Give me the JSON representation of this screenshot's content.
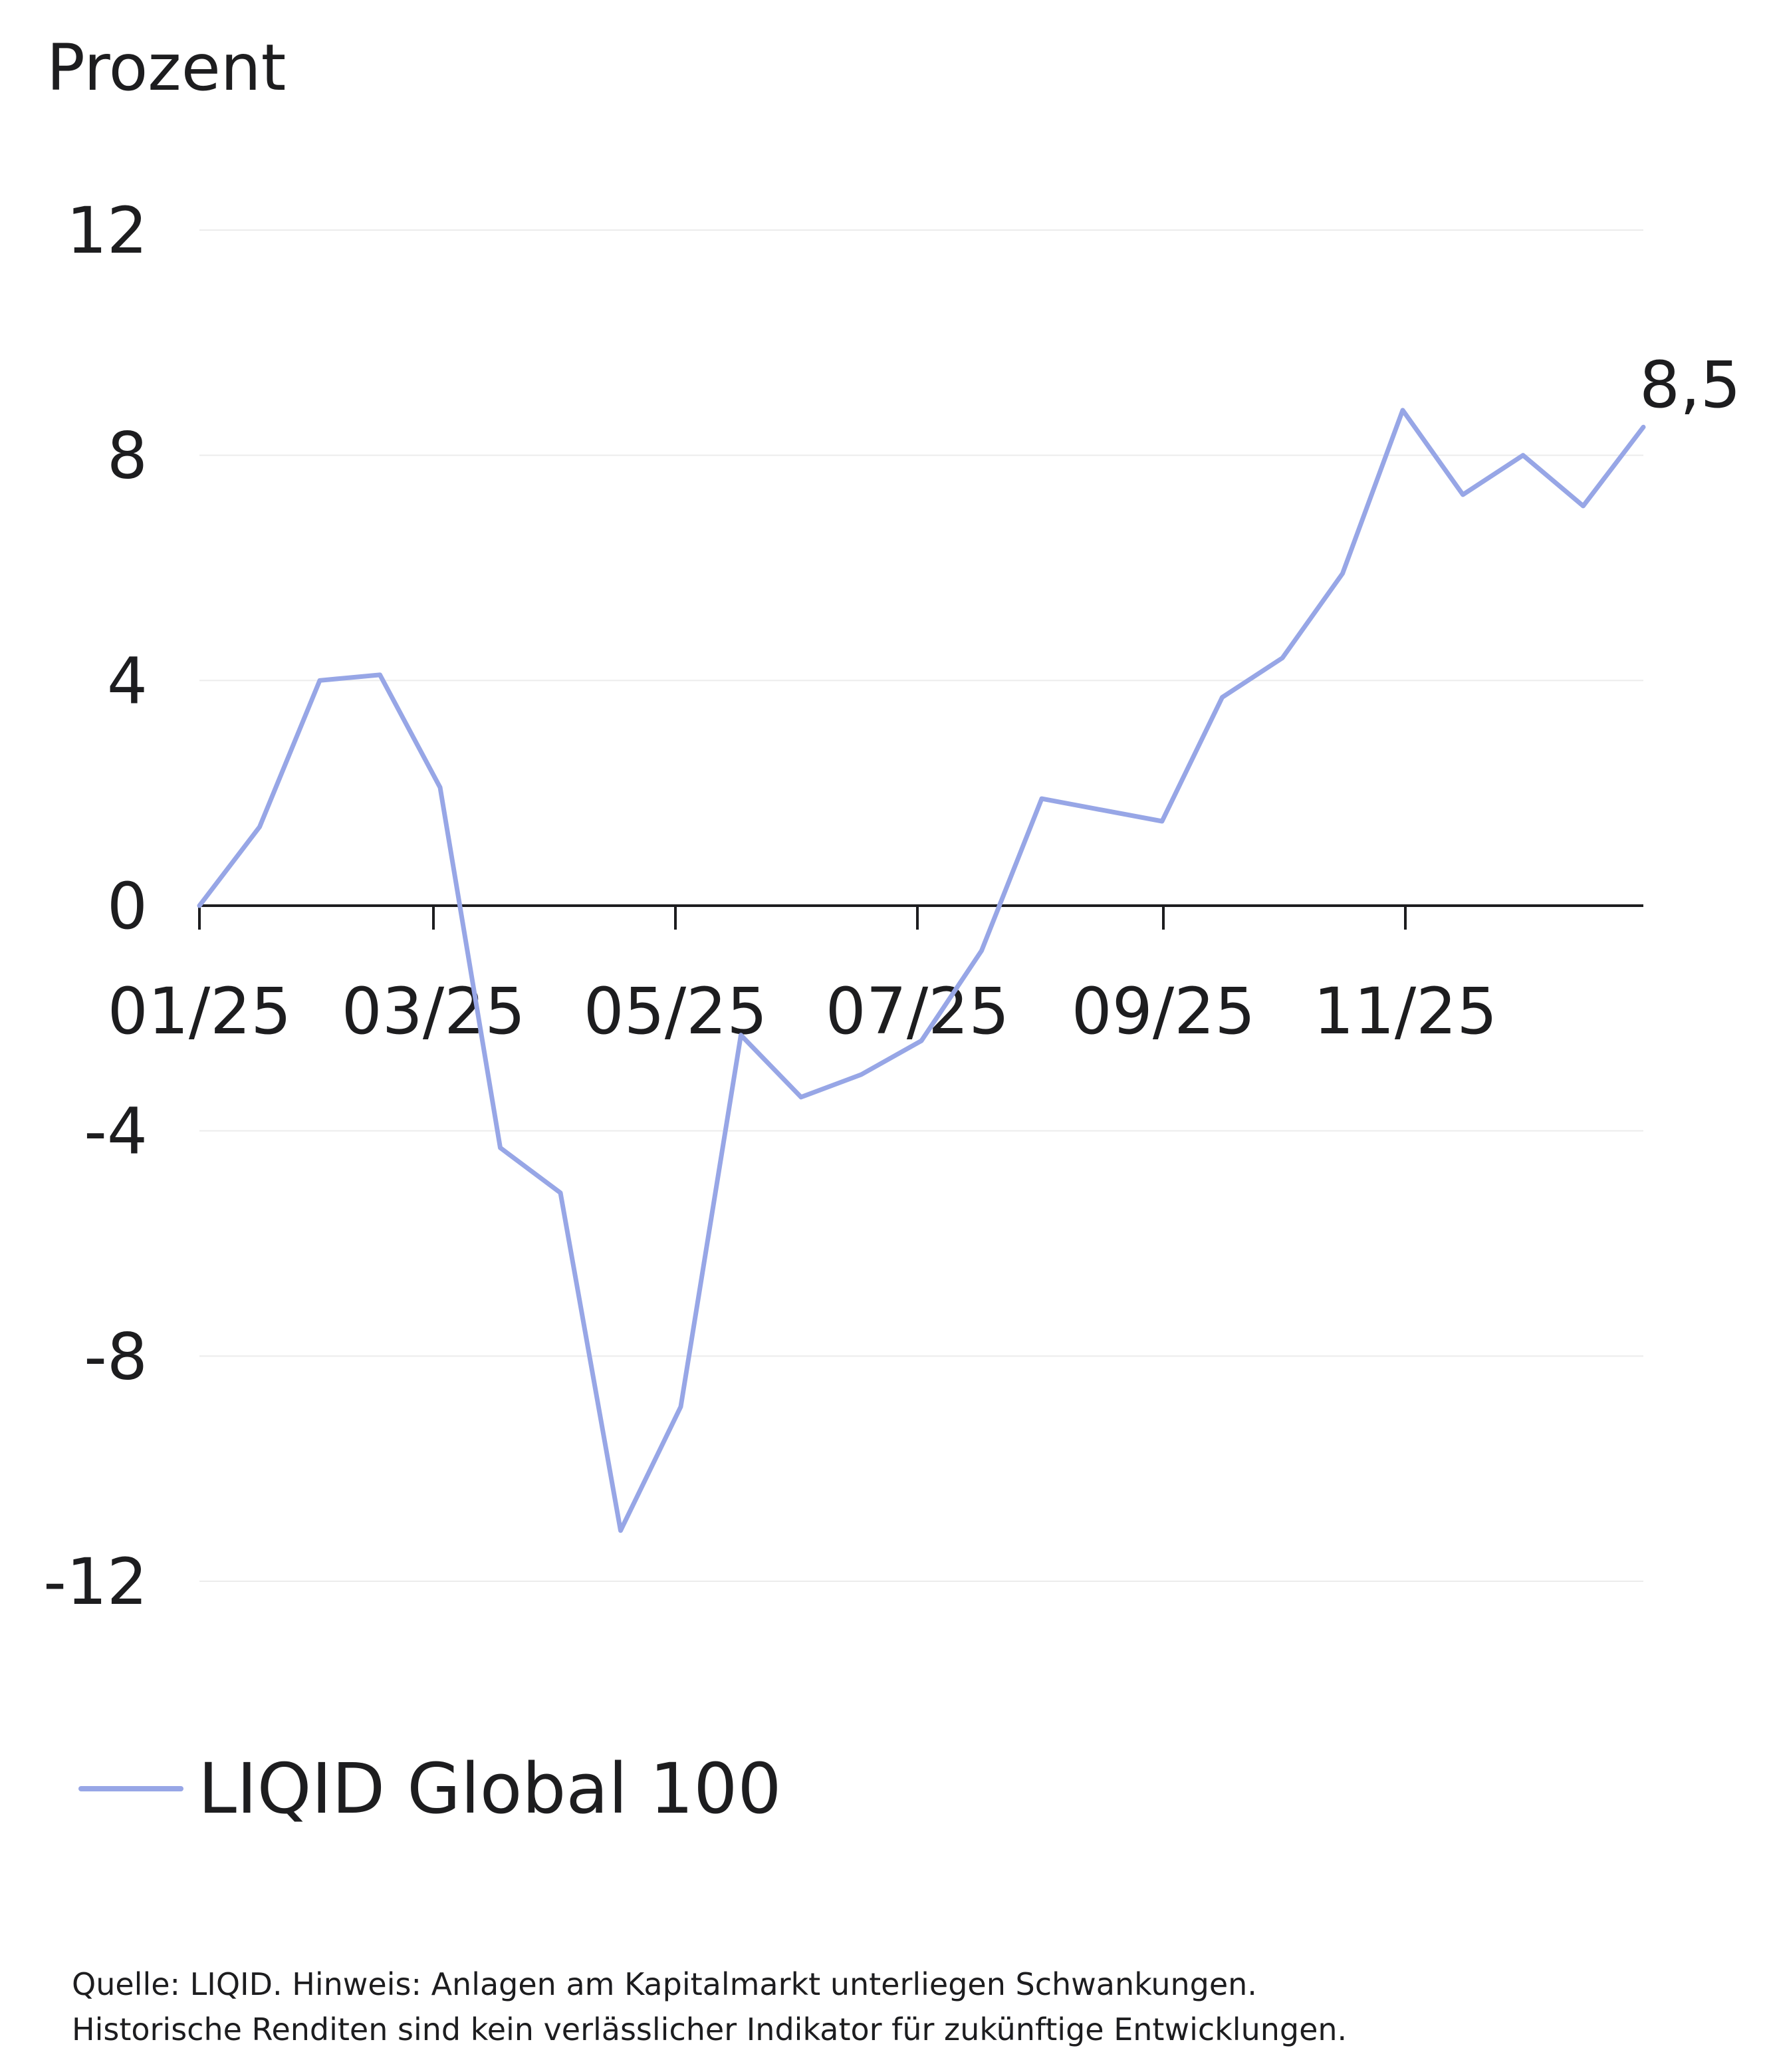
{
  "chart_data": {
    "type": "line",
    "ylabel": "Prozent",
    "ylim": [
      -12,
      12
    ],
    "yticks": [
      "12",
      "8",
      "4",
      "0",
      "-4",
      "-8",
      "-12"
    ],
    "ytick_values": [
      12,
      8,
      4,
      0,
      -4,
      -8,
      -12
    ],
    "xtick_labels": [
      "01/25",
      "03/25",
      "05/25",
      "07/25",
      "09/25",
      "11/25"
    ],
    "grid": true,
    "legend_position": "bottom-left",
    "line_color": "#97a6e6",
    "series": [
      {
        "name": "LIQID Global 100",
        "points": [
          {
            "x": 0,
            "y": 0.0
          },
          {
            "x": 1,
            "y": 1.4
          },
          {
            "x": 2,
            "y": 4.0
          },
          {
            "x": 3,
            "y": 4.1
          },
          {
            "x": 4,
            "y": 2.1
          },
          {
            "x": 5,
            "y": -4.3
          },
          {
            "x": 6,
            "y": -5.1
          },
          {
            "x": 7,
            "y": -11.1
          },
          {
            "x": 8,
            "y": -8.9
          },
          {
            "x": 9,
            "y": -2.3
          },
          {
            "x": 10,
            "y": -3.4
          },
          {
            "x": 11,
            "y": -3.0
          },
          {
            "x": 12,
            "y": -2.4
          },
          {
            "x": 13,
            "y": -0.8
          },
          {
            "x": 14,
            "y": 1.9
          },
          {
            "x": 15,
            "y": 1.7
          },
          {
            "x": 16,
            "y": 1.5
          },
          {
            "x": 17,
            "y": 3.7
          },
          {
            "x": 18,
            "y": 4.4
          },
          {
            "x": 19,
            "y": 5.9
          },
          {
            "x": 20,
            "y": 8.8
          },
          {
            "x": 21,
            "y": 7.3
          },
          {
            "x": 22,
            "y": 8.0
          },
          {
            "x": 23,
            "y": 7.1
          },
          {
            "x": 24,
            "y": 8.5
          }
        ]
      }
    ],
    "end_label": "8,5"
  },
  "source_lines": [
    "Quelle: LIQID. Hinweis: Anlagen am Kapitalmarkt unterliegen Schwankungen.",
    "Historische Renditen sind kein verlässlicher Indikator für zukünftige Entwicklungen."
  ]
}
